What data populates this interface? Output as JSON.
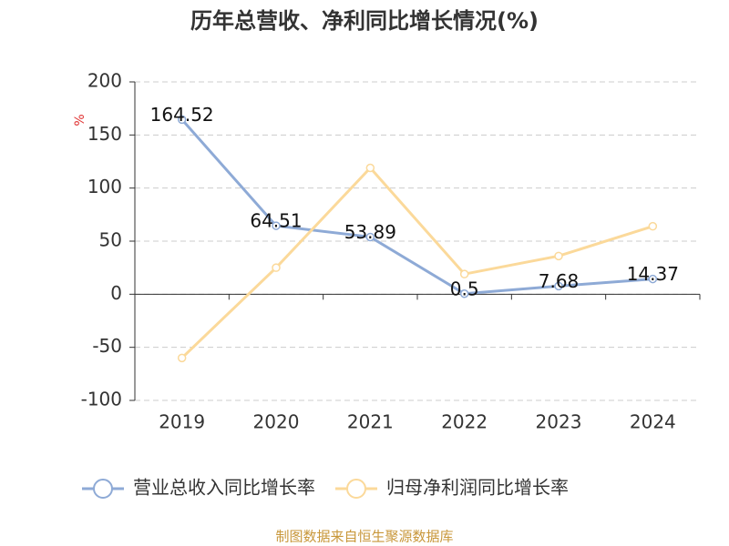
{
  "chart_data": {
    "type": "line",
    "title": "历年总营收、净利同比增长情况(%)",
    "y_label": "%",
    "categories": [
      "2019",
      "2020",
      "2021",
      "2022",
      "2023",
      "2024"
    ],
    "series": [
      {
        "name": "营业总收入同比增长率",
        "color": "#8eaad6",
        "values": [
          164.52,
          64.51,
          53.89,
          0.5,
          7.68,
          14.37
        ],
        "show_labels": true
      },
      {
        "name": "归母净利润同比增长率",
        "color": "#fbd99a",
        "values": [
          -60,
          25,
          119,
          19,
          36,
          64
        ],
        "show_labels": false
      }
    ],
    "ylim": [
      -100,
      200
    ],
    "yticks": [
      -100,
      -50,
      0,
      50,
      100,
      150,
      200
    ],
    "grid": true,
    "legend": "bottom",
    "source": "制图数据来自恒生聚源数据库"
  }
}
